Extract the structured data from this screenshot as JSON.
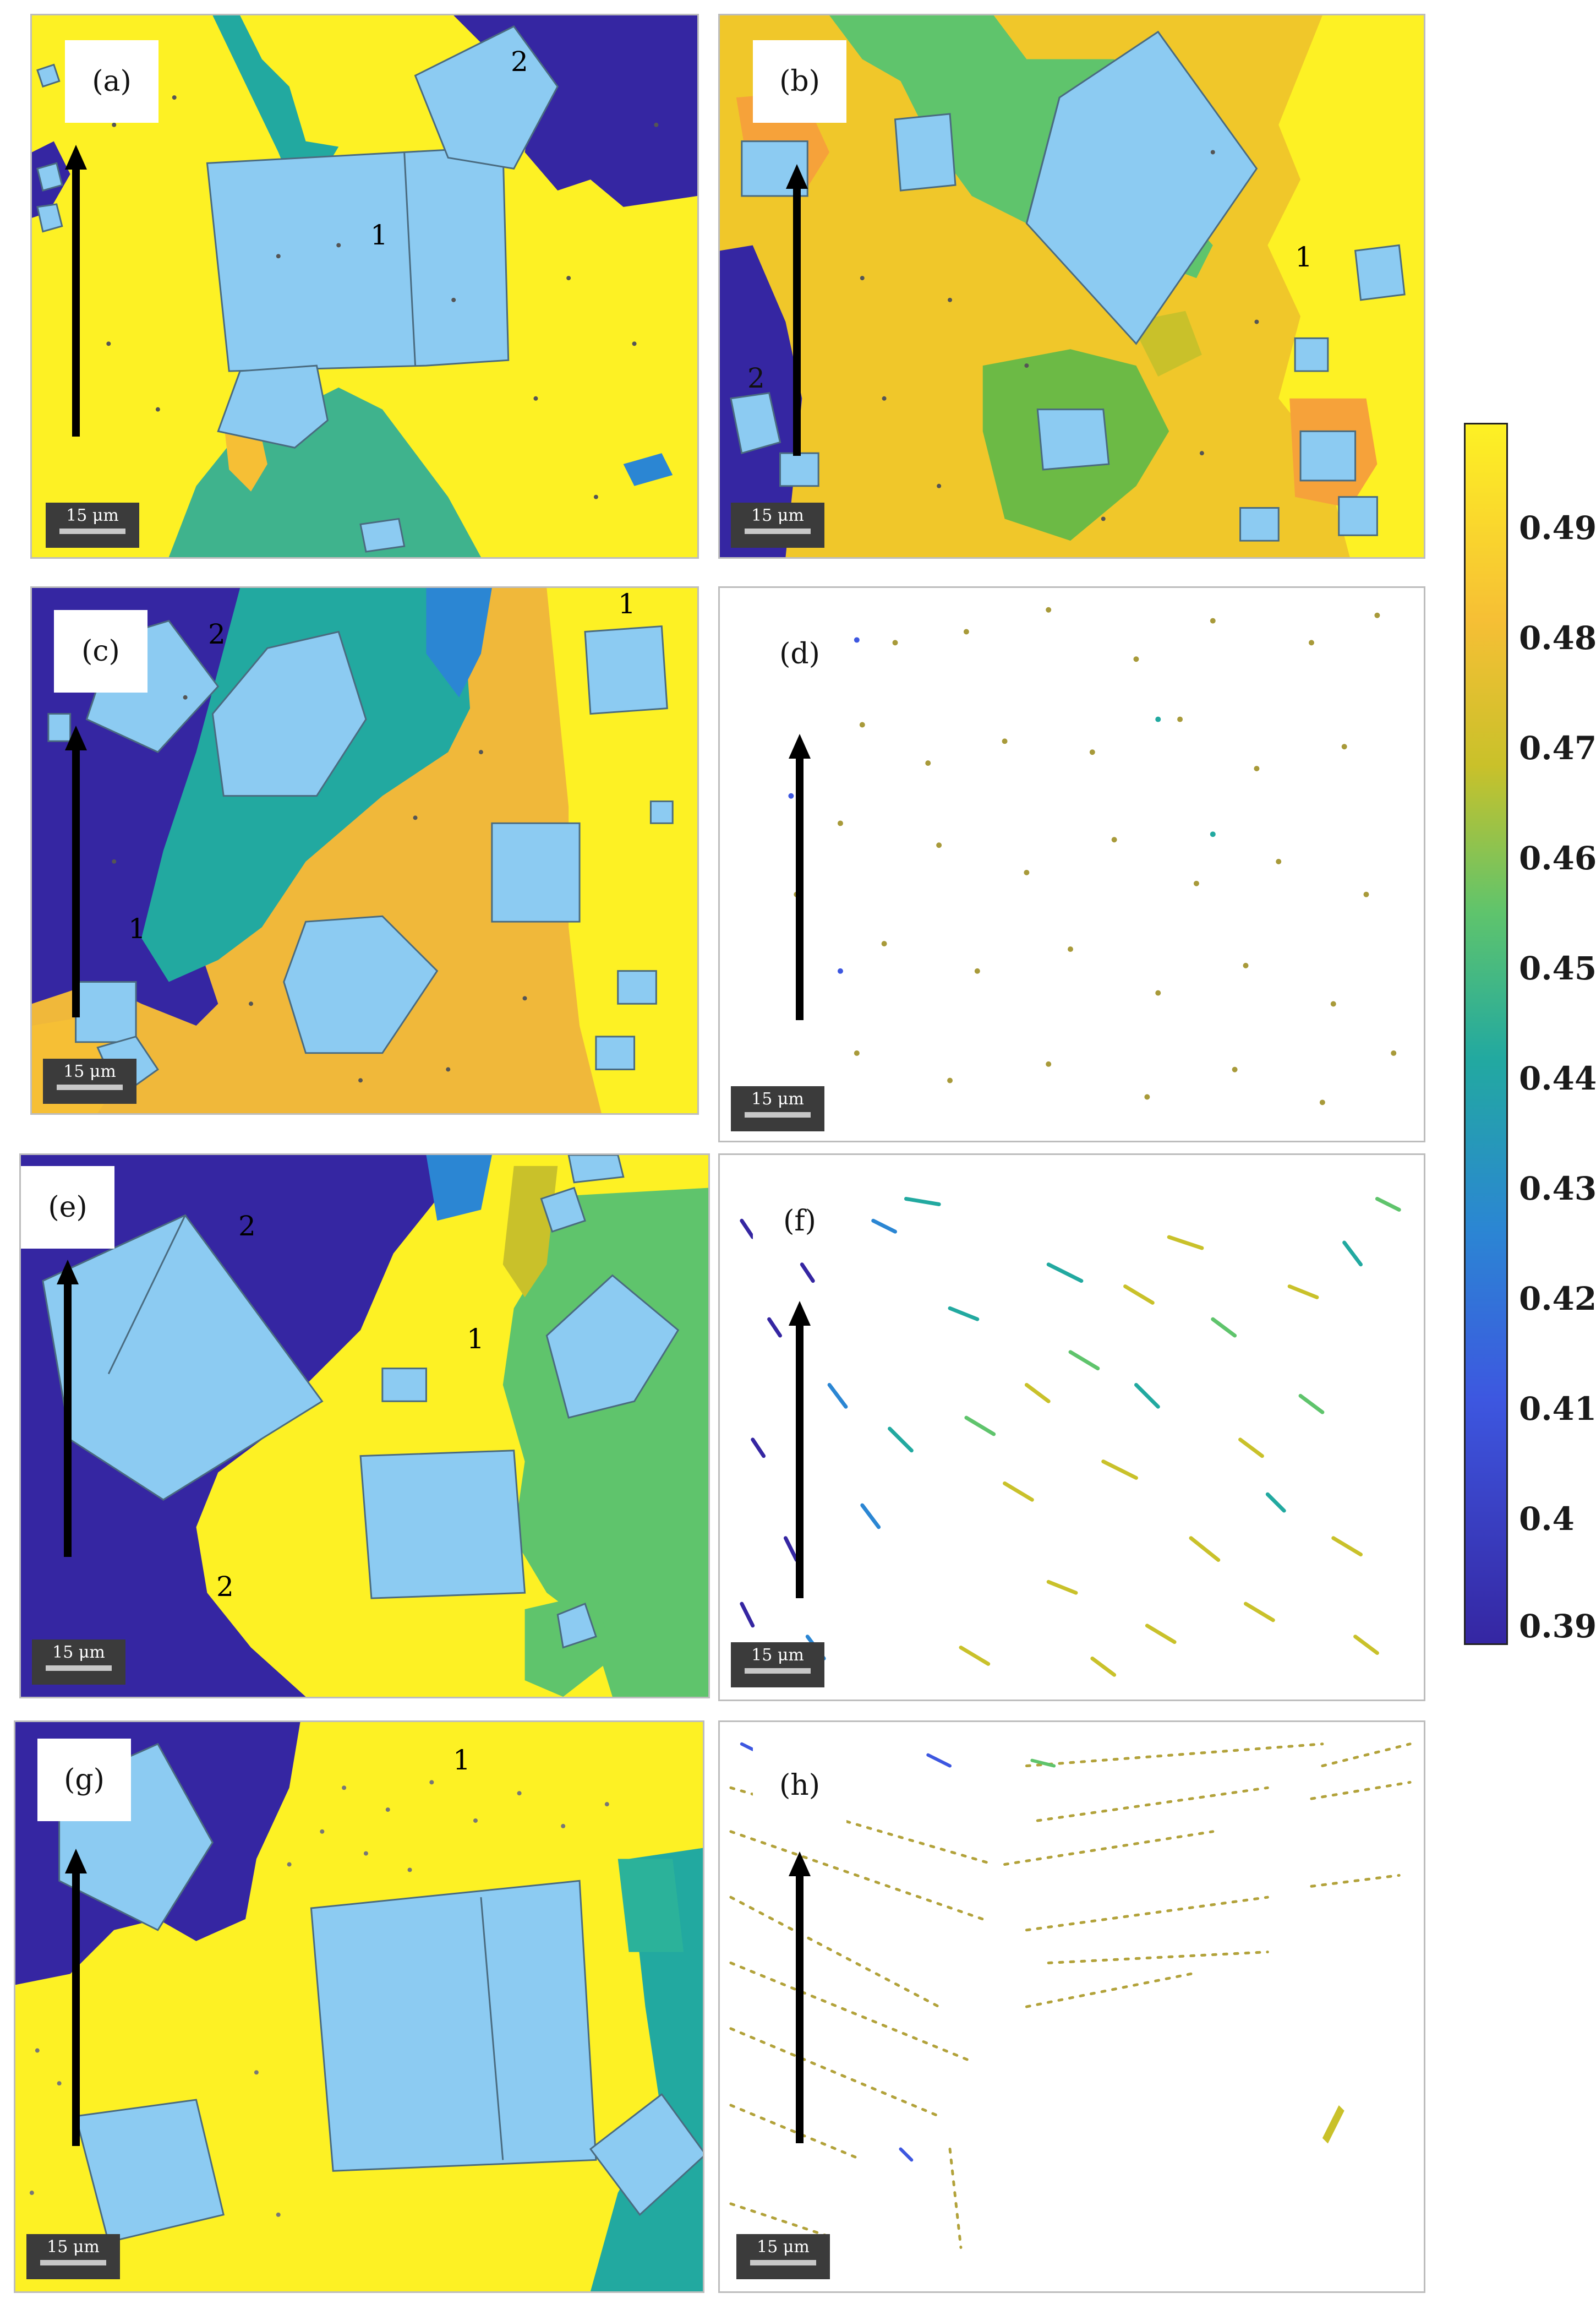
{
  "panels": [
    {
      "id": "a",
      "label": "(a)",
      "scale": "15 μm",
      "numbers": [
        "1",
        "2"
      ]
    },
    {
      "id": "b",
      "label": "(b)",
      "scale": "15 μm",
      "numbers": [
        "1",
        "2"
      ]
    },
    {
      "id": "c",
      "label": "(c)",
      "scale": "15 μm",
      "numbers": [
        "1",
        "2",
        "1"
      ]
    },
    {
      "id": "d",
      "label": "(d)",
      "scale": "15 μm",
      "numbers": []
    },
    {
      "id": "e",
      "label": "(e)",
      "scale": "15 μm",
      "numbers": [
        "1",
        "2",
        "2"
      ]
    },
    {
      "id": "f",
      "label": "(f)",
      "scale": "15 μm",
      "numbers": []
    },
    {
      "id": "g",
      "label": "(g)",
      "scale": "15 μm",
      "numbers": [
        "1"
      ]
    },
    {
      "id": "h",
      "label": "(h)",
      "scale": "15 μm",
      "numbers": []
    }
  ],
  "colorbar": {
    "ticks": [
      "0.49",
      "0.48",
      "0.47",
      "0.46",
      "0.45",
      "0.44",
      "0.43",
      "0.42",
      "0.41",
      "0.4",
      "0.39"
    ]
  },
  "colors": {
    "yellow": "#fdf124",
    "orange": "#f6bf35",
    "olive": "#c9c12a",
    "green": "#5fc46c",
    "teal": "#22a9a0",
    "blue": "#2b86d3",
    "purple": "#3526a2",
    "cube": "#8ccbf2"
  }
}
